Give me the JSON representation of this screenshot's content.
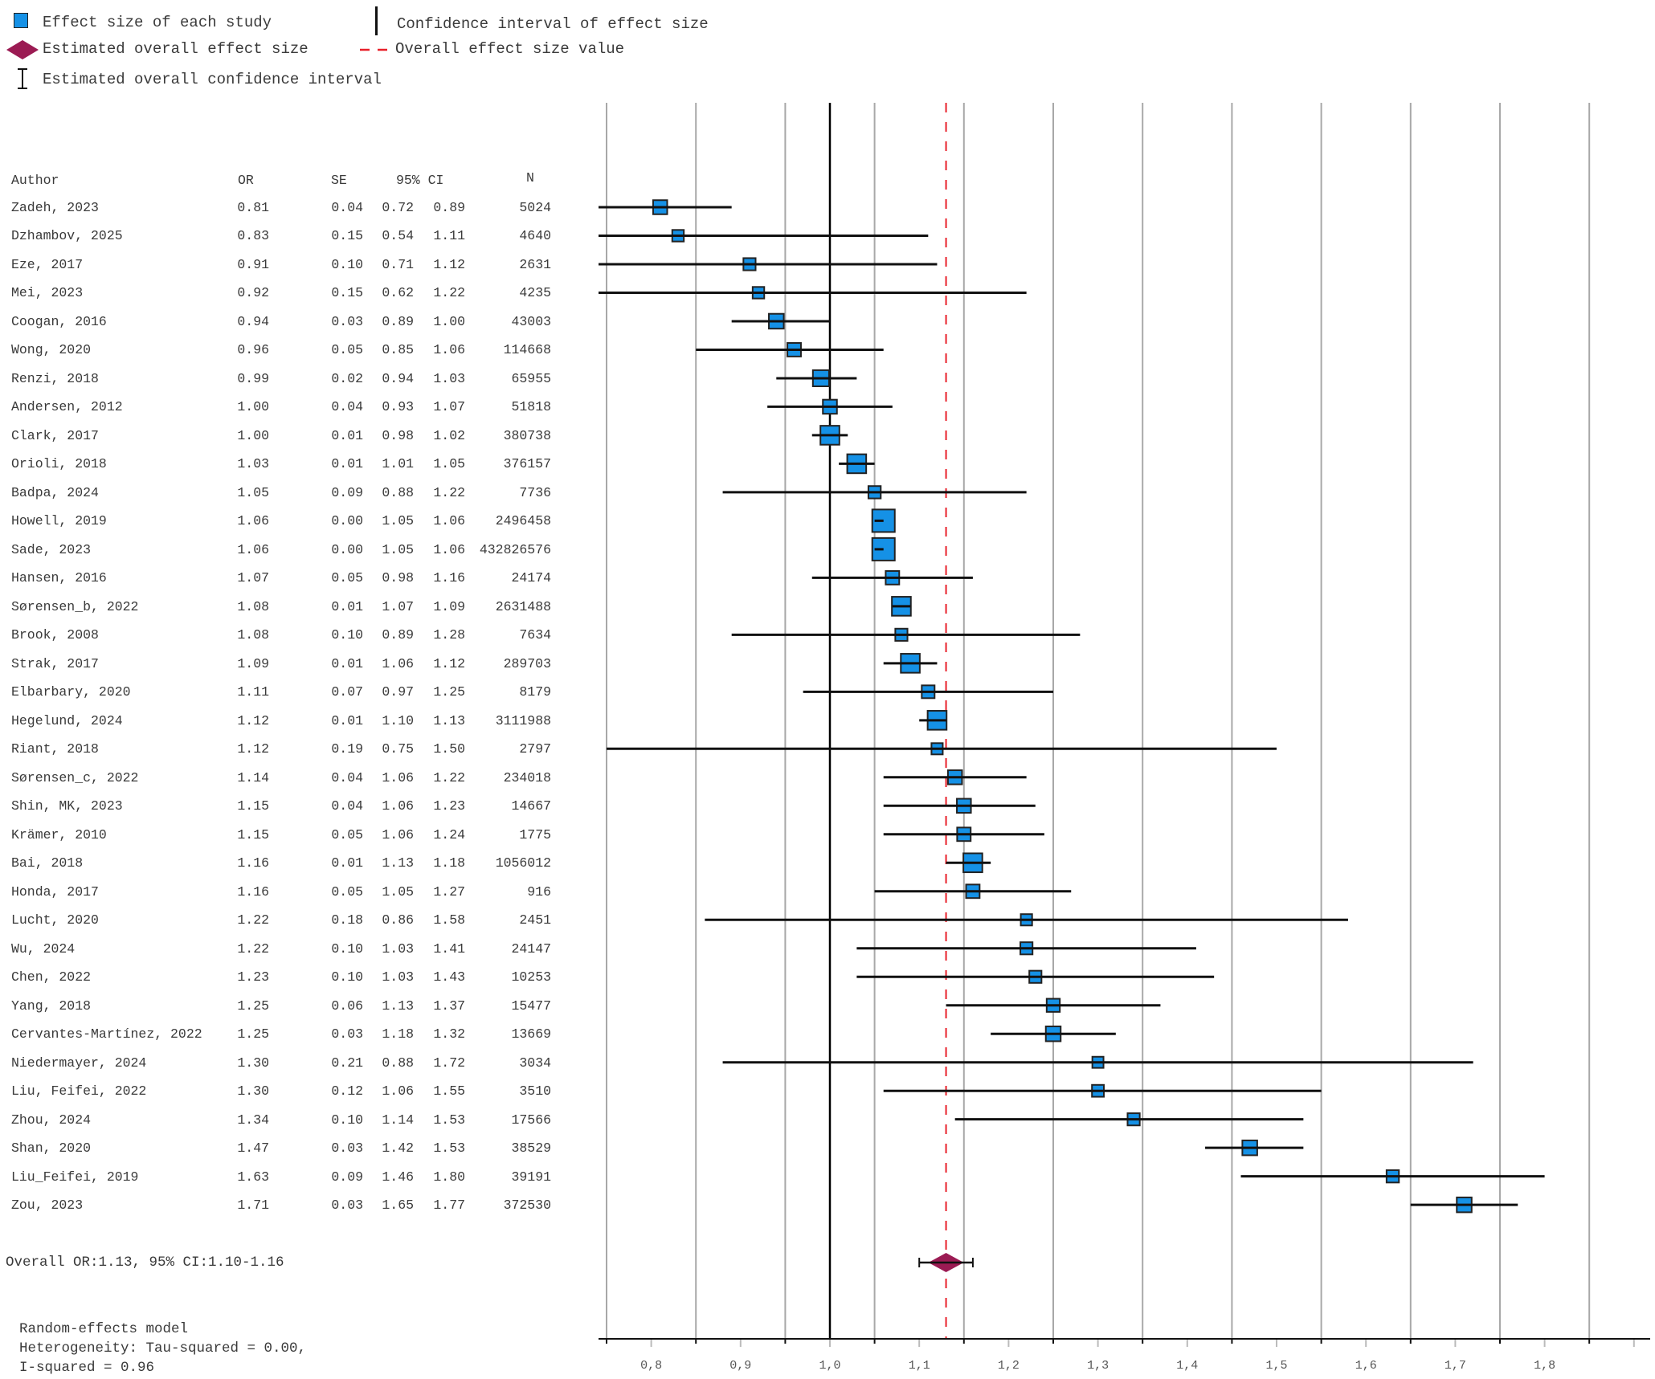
{
  "legend": {
    "study_effect": "Effect size of each study",
    "ci_effect": "Confidence interval of effect size",
    "overall_effect": "Estimated overall effect size",
    "overall_value": "Overall effect size value",
    "overall_ci": "Estimated overall confidence interval"
  },
  "table": {
    "headers": {
      "author": "Author",
      "or": "OR",
      "se": "SE",
      "ci": "95% CI",
      "n": "N"
    }
  },
  "colors": {
    "study_box": "#1591e6",
    "diamond": "#9b1b53",
    "overall_line": "#e8202a",
    "grid": "#a8a8a8"
  },
  "summary": {
    "overall": "Overall OR:1.13, 95% CI:1.10-1.16",
    "model": "Random-effects model",
    "heterogeneity": "Heterogeneity: Tau-squared = 0.00,",
    "i_squared": "I-squared = 0.96"
  },
  "chart_data": {
    "type": "forest",
    "xlabel": "",
    "x_range": [
      0.74,
      1.92
    ],
    "x_ticks": [
      0.8,
      0.9,
      1.0,
      1.1,
      1.2,
      1.3,
      1.4,
      1.5,
      1.6,
      1.7,
      1.8,
      1.9
    ],
    "x_tick_labels": [
      "0,8",
      "0,9",
      "1,0",
      "1,1",
      "1,2",
      "1,3",
      "1,4",
      "1,5",
      "1,6",
      "1,7",
      "1,8",
      ""
    ],
    "gridlines": [
      0.75,
      0.85,
      0.95,
      1.05,
      1.15,
      1.25,
      1.35,
      1.45,
      1.55,
      1.65,
      1.75,
      1.85
    ],
    "reference_line": 1.0,
    "overall": {
      "or": 1.13,
      "lower": 1.1,
      "upper": 1.16
    },
    "studies": [
      {
        "author": "Zadeh, 2023",
        "or": "0.81",
        "se": "0.04",
        "lower": "0.72",
        "upper": "0.89",
        "n": "5024"
      },
      {
        "author": "Dzhambov, 2025",
        "or": "0.83",
        "se": "0.15",
        "lower": "0.54",
        "upper": "1.11",
        "n": "4640"
      },
      {
        "author": "Eze, 2017",
        "or": "0.91",
        "se": "0.10",
        "lower": "0.71",
        "upper": "1.12",
        "n": "2631"
      },
      {
        "author": "Mei, 2023",
        "or": "0.92",
        "se": "0.15",
        "lower": "0.62",
        "upper": "1.22",
        "n": "4235"
      },
      {
        "author": "Coogan, 2016",
        "or": "0.94",
        "se": "0.03",
        "lower": "0.89",
        "upper": "1.00",
        "n": "43003"
      },
      {
        "author": "Wong, 2020",
        "or": "0.96",
        "se": "0.05",
        "lower": "0.85",
        "upper": "1.06",
        "n": "114668"
      },
      {
        "author": "Renzi, 2018",
        "or": "0.99",
        "se": "0.02",
        "lower": "0.94",
        "upper": "1.03",
        "n": "65955"
      },
      {
        "author": "Andersen, 2012",
        "or": "1.00",
        "se": "0.04",
        "lower": "0.93",
        "upper": "1.07",
        "n": "51818"
      },
      {
        "author": "Clark, 2017",
        "or": "1.00",
        "se": "0.01",
        "lower": "0.98",
        "upper": "1.02",
        "n": "380738"
      },
      {
        "author": "Orioli, 2018",
        "or": "1.03",
        "se": "0.01",
        "lower": "1.01",
        "upper": "1.05",
        "n": "376157"
      },
      {
        "author": "Badpa, 2024",
        "or": "1.05",
        "se": "0.09",
        "lower": "0.88",
        "upper": "1.22",
        "n": "7736"
      },
      {
        "author": "Howell, 2019",
        "or": "1.06",
        "se": "0.00",
        "lower": "1.05",
        "upper": "1.06",
        "n": "2496458"
      },
      {
        "author": "Sade, 2023",
        "or": "1.06",
        "se": "0.00",
        "lower": "1.05",
        "upper": "1.06",
        "n": "432826576"
      },
      {
        "author": "Hansen, 2016",
        "or": "1.07",
        "se": "0.05",
        "lower": "0.98",
        "upper": "1.16",
        "n": "24174"
      },
      {
        "author": "Sørensen_b, 2022",
        "or": "1.08",
        "se": "0.01",
        "lower": "1.07",
        "upper": "1.09",
        "n": "2631488"
      },
      {
        "author": "Brook, 2008",
        "or": "1.08",
        "se": "0.10",
        "lower": "0.89",
        "upper": "1.28",
        "n": "7634"
      },
      {
        "author": "Strak, 2017",
        "or": "1.09",
        "se": "0.01",
        "lower": "1.06",
        "upper": "1.12",
        "n": "289703"
      },
      {
        "author": "Elbarbary, 2020",
        "or": "1.11",
        "se": "0.07",
        "lower": "0.97",
        "upper": "1.25",
        "n": "8179"
      },
      {
        "author": "Hegelund, 2024",
        "or": "1.12",
        "se": "0.01",
        "lower": "1.10",
        "upper": "1.13",
        "n": "3111988"
      },
      {
        "author": "Riant, 2018",
        "or": "1.12",
        "se": "0.19",
        "lower": "0.75",
        "upper": "1.50",
        "n": "2797"
      },
      {
        "author": "Sørensen_c, 2022",
        "or": "1.14",
        "se": "0.04",
        "lower": "1.06",
        "upper": "1.22",
        "n": "234018"
      },
      {
        "author": "Shin, MK, 2023",
        "or": "1.15",
        "se": "0.04",
        "lower": "1.06",
        "upper": "1.23",
        "n": "14667"
      },
      {
        "author": "Krämer, 2010",
        "or": "1.15",
        "se": "0.05",
        "lower": "1.06",
        "upper": "1.24",
        "n": "1775"
      },
      {
        "author": "Bai, 2018",
        "or": "1.16",
        "se": "0.01",
        "lower": "1.13",
        "upper": "1.18",
        "n": "1056012"
      },
      {
        "author": "Honda, 2017",
        "or": "1.16",
        "se": "0.05",
        "lower": "1.05",
        "upper": "1.27",
        "n": "916"
      },
      {
        "author": "Lucht, 2020",
        "or": "1.22",
        "se": "0.18",
        "lower": "0.86",
        "upper": "1.58",
        "n": "2451"
      },
      {
        "author": "Wu, 2024",
        "or": "1.22",
        "se": "0.10",
        "lower": "1.03",
        "upper": "1.41",
        "n": "24147"
      },
      {
        "author": "Chen, 2022",
        "or": "1.23",
        "se": "0.10",
        "lower": "1.03",
        "upper": "1.43",
        "n": "10253"
      },
      {
        "author": "Yang, 2018",
        "or": "1.25",
        "se": "0.06",
        "lower": "1.13",
        "upper": "1.37",
        "n": "15477"
      },
      {
        "author": "Cervantes-Martínez, 2022",
        "or": "1.25",
        "se": "0.03",
        "lower": "1.18",
        "upper": "1.32",
        "n": "13669"
      },
      {
        "author": "Niedermayer, 2024",
        "or": "1.30",
        "se": "0.21",
        "lower": "0.88",
        "upper": "1.72",
        "n": "3034"
      },
      {
        "author": "Liu, Feifei, 2022",
        "or": "1.30",
        "se": "0.12",
        "lower": "1.06",
        "upper": "1.55",
        "n": "3510"
      },
      {
        "author": "Zhou, 2024",
        "or": "1.34",
        "se": "0.10",
        "lower": "1.14",
        "upper": "1.53",
        "n": "17566"
      },
      {
        "author": "Shan, 2020",
        "or": "1.47",
        "se": "0.03",
        "lower": "1.42",
        "upper": "1.53",
        "n": "38529"
      },
      {
        "author": "Liu_Feifei, 2019",
        "or": "1.63",
        "se": "0.09",
        "lower": "1.46",
        "upper": "1.80",
        "n": "39191"
      },
      {
        "author": "Zou, 2023",
        "or": "1.71",
        "se": "0.03",
        "lower": "1.65",
        "upper": "1.77",
        "n": "372530"
      }
    ]
  }
}
